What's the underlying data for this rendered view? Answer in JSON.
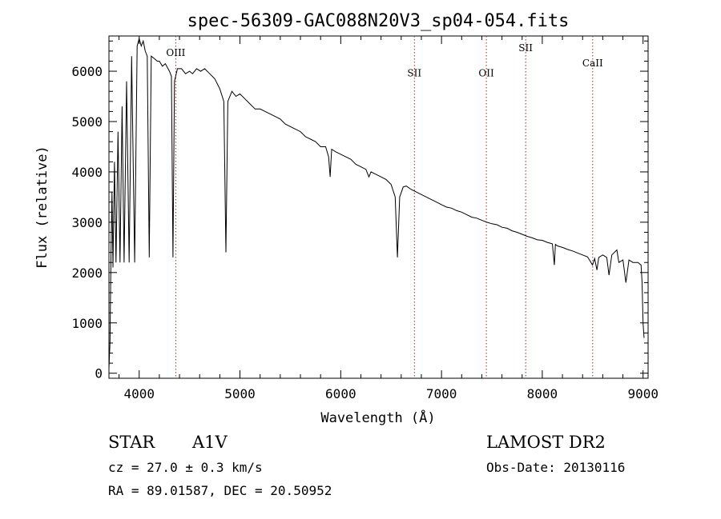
{
  "chart_data": {
    "type": "line",
    "title": "spec-56309-GAC088N20V3_sp04-054.fits",
    "xlabel": "Wavelength (Å)",
    "ylabel": "Flux (relative)",
    "xlim": [
      3700,
      9050
    ],
    "ylim": [
      -100,
      6700
    ],
    "x_ticks": [
      4000,
      5000,
      6000,
      7000,
      8000,
      9000
    ],
    "x_tick_labels": [
      "4000",
      "5000",
      "6000",
      "7000",
      "8000",
      "9000"
    ],
    "y_ticks": [
      0,
      1000,
      2000,
      3000,
      4000,
      5000,
      6000
    ],
    "y_tick_labels": [
      "0",
      "1000",
      "2000",
      "3000",
      "4000",
      "5000",
      "6000"
    ],
    "grid": false,
    "line_color": "#000000",
    "marker_color": "#b22222",
    "series": [
      {
        "points": [
          [
            3700,
            100
          ],
          [
            3710,
            600
          ],
          [
            3720,
            2300
          ],
          [
            3730,
            3600
          ],
          [
            3740,
            2100
          ],
          [
            3755,
            4200
          ],
          [
            3770,
            2200
          ],
          [
            3790,
            4800
          ],
          [
            3810,
            2200
          ],
          [
            3830,
            5300
          ],
          [
            3850,
            2200
          ],
          [
            3875,
            5800
          ],
          [
            3900,
            2200
          ],
          [
            3925,
            6300
          ],
          [
            3955,
            2200
          ],
          [
            3980,
            6500
          ],
          [
            4000,
            6650
          ],
          [
            4020,
            6500
          ],
          [
            4040,
            6600
          ],
          [
            4060,
            6400
          ],
          [
            4080,
            6300
          ],
          [
            4100,
            2300
          ],
          [
            4120,
            6300
          ],
          [
            4150,
            6250
          ],
          [
            4180,
            6200
          ],
          [
            4200,
            6200
          ],
          [
            4230,
            6100
          ],
          [
            4260,
            6150
          ],
          [
            4300,
            6000
          ],
          [
            4320,
            5900
          ],
          [
            4335,
            2300
          ],
          [
            4350,
            5800
          ],
          [
            4380,
            6050
          ],
          [
            4420,
            6050
          ],
          [
            4460,
            5950
          ],
          [
            4500,
            6000
          ],
          [
            4530,
            5950
          ],
          [
            4570,
            6050
          ],
          [
            4610,
            6000
          ],
          [
            4650,
            6050
          ],
          [
            4700,
            5950
          ],
          [
            4750,
            5850
          ],
          [
            4800,
            5650
          ],
          [
            4840,
            5400
          ],
          [
            4861,
            2400
          ],
          [
            4880,
            5400
          ],
          [
            4920,
            5600
          ],
          [
            4960,
            5500
          ],
          [
            5000,
            5550
          ],
          [
            5050,
            5450
          ],
          [
            5100,
            5350
          ],
          [
            5150,
            5250
          ],
          [
            5200,
            5250
          ],
          [
            5250,
            5200
          ],
          [
            5300,
            5150
          ],
          [
            5350,
            5100
          ],
          [
            5400,
            5050
          ],
          [
            5450,
            4950
          ],
          [
            5500,
            4900
          ],
          [
            5550,
            4850
          ],
          [
            5600,
            4800
          ],
          [
            5650,
            4700
          ],
          [
            5700,
            4650
          ],
          [
            5750,
            4600
          ],
          [
            5800,
            4500
          ],
          [
            5850,
            4500
          ],
          [
            5880,
            4300
          ],
          [
            5895,
            3900
          ],
          [
            5910,
            4450
          ],
          [
            5950,
            4400
          ],
          [
            6000,
            4350
          ],
          [
            6050,
            4300
          ],
          [
            6100,
            4250
          ],
          [
            6150,
            4150
          ],
          [
            6200,
            4100
          ],
          [
            6250,
            4050
          ],
          [
            6280,
            3900
          ],
          [
            6300,
            4000
          ],
          [
            6350,
            3950
          ],
          [
            6400,
            3900
          ],
          [
            6450,
            3850
          ],
          [
            6500,
            3750
          ],
          [
            6540,
            3500
          ],
          [
            6563,
            2300
          ],
          [
            6585,
            3500
          ],
          [
            6620,
            3700
          ],
          [
            6650,
            3720
          ],
          [
            6700,
            3650
          ],
          [
            6750,
            3600
          ],
          [
            6800,
            3550
          ],
          [
            6850,
            3500
          ],
          [
            6900,
            3450
          ],
          [
            6950,
            3400
          ],
          [
            7000,
            3350
          ],
          [
            7050,
            3300
          ],
          [
            7100,
            3280
          ],
          [
            7150,
            3230
          ],
          [
            7200,
            3200
          ],
          [
            7250,
            3150
          ],
          [
            7300,
            3100
          ],
          [
            7350,
            3080
          ],
          [
            7400,
            3040
          ],
          [
            7450,
            3000
          ],
          [
            7500,
            2970
          ],
          [
            7550,
            2950
          ],
          [
            7600,
            2900
          ],
          [
            7650,
            2880
          ],
          [
            7700,
            2830
          ],
          [
            7750,
            2800
          ],
          [
            7800,
            2760
          ],
          [
            7850,
            2720
          ],
          [
            7900,
            2690
          ],
          [
            7950,
            2650
          ],
          [
            8000,
            2640
          ],
          [
            8050,
            2600
          ],
          [
            8100,
            2570
          ],
          [
            8120,
            2150
          ],
          [
            8130,
            2560
          ],
          [
            8150,
            2530
          ],
          [
            8200,
            2500
          ],
          [
            8250,
            2460
          ],
          [
            8300,
            2430
          ],
          [
            8350,
            2390
          ],
          [
            8400,
            2350
          ],
          [
            8450,
            2310
          ],
          [
            8498,
            2150
          ],
          [
            8520,
            2280
          ],
          [
            8542,
            2050
          ],
          [
            8560,
            2300
          ],
          [
            8600,
            2350
          ],
          [
            8640,
            2300
          ],
          [
            8662,
            1950
          ],
          [
            8690,
            2350
          ],
          [
            8740,
            2450
          ],
          [
            8760,
            2200
          ],
          [
            8800,
            2250
          ],
          [
            8830,
            1800
          ],
          [
            8860,
            2250
          ],
          [
            8900,
            2200
          ],
          [
            8950,
            2200
          ],
          [
            8980,
            2150
          ],
          [
            8990,
            1800
          ],
          [
            9000,
            1000
          ],
          [
            9010,
            700
          ]
        ]
      }
    ],
    "line_markers": [
      {
        "label": "OIII",
        "x": 4363,
        "label_level": 6300
      },
      {
        "label": "SII",
        "x": 6731,
        "label_level": 5900
      },
      {
        "label": "OII",
        "x": 7445,
        "label_level": 5900
      },
      {
        "label": "SII",
        "x": 7835,
        "label_level": 6400
      },
      {
        "label": "CaII",
        "x": 8500,
        "label_level": 6100
      }
    ]
  },
  "footer": {
    "star": "STAR",
    "class": "A1V",
    "cz": "cz = 27.0 ± 0.3 km/s",
    "radec": "RA =  89.01587, DEC =  20.50952",
    "survey": "LAMOST DR2",
    "obs_date": "Obs-Date: 20130116"
  }
}
